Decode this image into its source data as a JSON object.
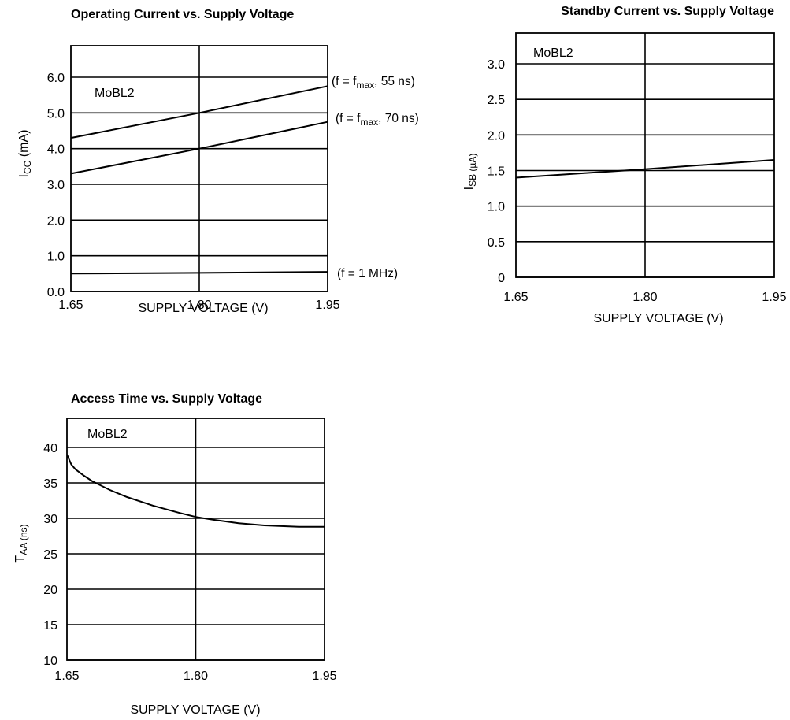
{
  "chart_data": [
    {
      "type": "line",
      "title": "Operating Current vs. Supply Voltage",
      "xlabel": "SUPPLY VOLTAGE (V)",
      "ylabel_main": "I",
      "ylabel_sub": "CC",
      "ylabel_unit": " (mA)",
      "annotation": "MoBL2",
      "xlim": [
        1.65,
        1.95
      ],
      "ylim": [
        0.0,
        6.0
      ],
      "x_ticks": [
        1.65,
        1.8,
        1.95
      ],
      "x_tick_labels": [
        "1.65",
        "1.80",
        "1.95"
      ],
      "y_ticks": [
        0.0,
        1.0,
        2.0,
        3.0,
        4.0,
        5.0,
        6.0
      ],
      "y_tick_labels": [
        "0.0",
        "1.0",
        "2.0",
        "3.0",
        "4.0",
        "5.0",
        "6.0"
      ],
      "grid": true,
      "series": [
        {
          "label_pre": "(f = f",
          "label_sub": "max",
          "label_post": ", 55 ns)",
          "x": [
            1.65,
            1.8,
            1.95
          ],
          "y": [
            4.3,
            5.0,
            5.75
          ]
        },
        {
          "label_pre": "(f = f",
          "label_sub": "max",
          "label_post": ", 70 ns)",
          "x": [
            1.65,
            1.8,
            1.95
          ],
          "y": [
            3.3,
            4.0,
            4.75
          ]
        },
        {
          "label_pre": "(f = 1 MHz)",
          "label_sub": "",
          "label_post": "",
          "x": [
            1.65,
            1.8,
            1.95
          ],
          "y": [
            0.5,
            0.52,
            0.55
          ]
        }
      ]
    },
    {
      "type": "line",
      "title": "Standby Current vs. Supply Voltage",
      "xlabel": "SUPPLY VOLTAGE (V)",
      "ylabel_main": "I",
      "ylabel_sub": "SB (µA)",
      "ylabel_unit": "",
      "annotation": "MoBL2",
      "xlim": [
        1.65,
        1.95
      ],
      "ylim": [
        0,
        3.0
      ],
      "x_ticks": [
        1.65,
        1.8,
        1.95
      ],
      "x_tick_labels": [
        "1.65",
        "1.80",
        "1.95"
      ],
      "y_ticks": [
        0,
        0.5,
        1.0,
        1.5,
        2.0,
        2.5,
        3.0
      ],
      "y_tick_labels": [
        "0",
        "0.5",
        "1.0",
        "1.5",
        "2.0",
        "2.5",
        "3.0"
      ],
      "grid": true,
      "series": [
        {
          "x": [
            1.65,
            1.8,
            1.95
          ],
          "y": [
            1.4,
            1.52,
            1.65
          ]
        }
      ]
    },
    {
      "type": "line",
      "title": "Access Time vs. Supply Voltage",
      "xlabel": "SUPPLY VOLTAGE (V)",
      "ylabel_main": "T",
      "ylabel_sub": "AA (ns)",
      "ylabel_unit": "",
      "annotation": "MoBL2",
      "xlim": [
        1.65,
        1.95
      ],
      "ylim": [
        10,
        40
      ],
      "x_ticks": [
        1.65,
        1.8,
        1.95
      ],
      "x_tick_labels": [
        "1.65",
        "1.80",
        "1.95"
      ],
      "y_ticks": [
        10,
        15,
        20,
        25,
        30,
        35,
        40
      ],
      "y_tick_labels": [
        "10",
        "15",
        "20",
        "25",
        "30",
        "35",
        "40"
      ],
      "grid": true,
      "series": [
        {
          "x": [
            1.65,
            1.655,
            1.66,
            1.67,
            1.68,
            1.7,
            1.72,
            1.75,
            1.78,
            1.8,
            1.82,
            1.85,
            1.88,
            1.92,
            1.95
          ],
          "y": [
            39.0,
            37.6,
            36.9,
            36.0,
            35.2,
            34.0,
            33.0,
            31.8,
            30.8,
            30.2,
            29.8,
            29.3,
            29.0,
            28.8,
            28.8
          ]
        }
      ]
    }
  ]
}
